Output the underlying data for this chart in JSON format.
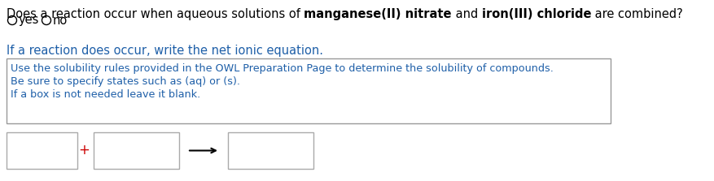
{
  "background_color": "#ffffff",
  "line1_parts": [
    {
      "text": "Does a reaction occur when aqueous solutions of ",
      "bold": false,
      "color": "#000000"
    },
    {
      "text": "manganese(II) nitrate",
      "bold": true,
      "color": "#000000"
    },
    {
      "text": " and ",
      "bold": false,
      "color": "#000000"
    },
    {
      "text": "iron(III) chloride",
      "bold": true,
      "color": "#000000"
    },
    {
      "text": " are combined?",
      "bold": false,
      "color": "#000000"
    }
  ],
  "radio_text_yes": "yes",
  "radio_text_no": "no",
  "radio_color": "#000000",
  "line3_text": "If a reaction does occur, write the net ionic equation.",
  "line3_color": "#1e5fa8",
  "hint_box_lines": [
    "Use the solubility rules provided in the OWL Preparation Page to determine the solubility of compounds.",
    "Be sure to specify states such as (aq) or (s).",
    "If a box is not needed leave it blank."
  ],
  "hint_box_text_color": "#1e5fa8",
  "hint_box_edge_color": "#999999",
  "hint_box_face_color": "#ffffff",
  "input_box_edge_color": "#aaaaaa",
  "arrow_color": "#000000",
  "plus_color": "#cc0000",
  "font_size_main": 10.5,
  "font_size_hint": 9.2
}
